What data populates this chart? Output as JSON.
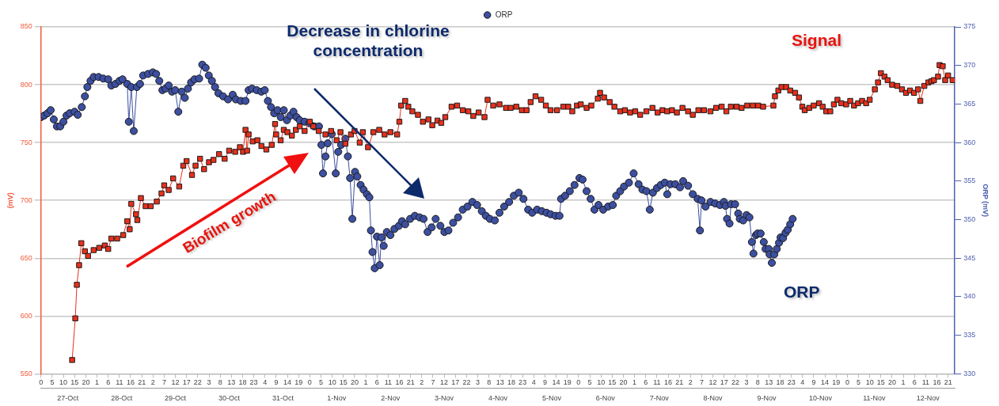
{
  "chart_data": {
    "type": "line",
    "ylabel": "(mV)",
    "y2label": "ORP (mV)",
    "legend": "top",
    "grid": "y",
    "annotations": [
      "Decrease in chlorine concentration",
      "Biofilm growth",
      "Signal",
      "ORP"
    ],
    "xlim": [
      "--10-27T00:00",
      "--11-13T00:00"
    ],
    "ylim": [
      550,
      850
    ],
    "y2lim": [
      330,
      375
    ],
    "yticks": [
      550,
      600,
      650,
      700,
      750,
      800,
      850
    ],
    "y2ticks": [
      330,
      335,
      340,
      345,
      350,
      355,
      360,
      365,
      370,
      375
    ],
    "xticks": [
      {
        "value": "--10-27T00:00",
        "label": "0"
      },
      {
        "value": "--10-27T05:00",
        "label": "5"
      },
      {
        "value": "--10-27T10:00",
        "label": "10"
      },
      {
        "value": "--10-27T15:00",
        "label": "15"
      },
      {
        "value": "--10-27T20:00",
        "label": "20"
      },
      {
        "value": "--10-28T01:00",
        "label": "1"
      },
      {
        "value": "--10-28T06:00",
        "label": "6"
      },
      {
        "value": "--10-28T11:00",
        "label": "11"
      },
      {
        "value": "--10-28T16:00",
        "label": "16"
      },
      {
        "value": "--10-28T21:00",
        "label": "21"
      },
      {
        "value": "--10-29T02:00",
        "label": "2"
      },
      {
        "value": "--10-29T07:00",
        "label": "7"
      },
      {
        "value": "--10-29T12:00",
        "label": "12"
      },
      {
        "value": "--10-29T17:00",
        "label": "17"
      },
      {
        "value": "--10-29T22:00",
        "label": "22"
      },
      {
        "value": "--10-30T03:00",
        "label": "3"
      },
      {
        "value": "--10-30T08:00",
        "label": "8"
      },
      {
        "value": "--10-30T13:00",
        "label": "13"
      },
      {
        "value": "--10-30T18:00",
        "label": "18"
      },
      {
        "value": "--10-30T23:00",
        "label": "23"
      },
      {
        "value": "--10-31T04:00",
        "label": "4"
      },
      {
        "value": "--10-31T09:00",
        "label": "9"
      },
      {
        "value": "--10-31T14:00",
        "label": "14"
      },
      {
        "value": "--10-31T19:00",
        "label": "19"
      },
      {
        "value": "--11-01T00:00",
        "label": "0"
      },
      {
        "value": "--11-01T05:00",
        "label": "5"
      },
      {
        "value": "--11-01T10:00",
        "label": "10"
      },
      {
        "value": "--11-01T15:00",
        "label": "15"
      },
      {
        "value": "--11-01T20:00",
        "label": "20"
      },
      {
        "value": "--11-02T01:00",
        "label": "1"
      },
      {
        "value": "--11-02T06:00",
        "label": "6"
      },
      {
        "value": "--11-02T11:00",
        "label": "11"
      },
      {
        "value": "--11-02T16:00",
        "label": "16"
      },
      {
        "value": "--11-02T21:00",
        "label": "21"
      },
      {
        "value": "--11-03T02:00",
        "label": "2"
      },
      {
        "value": "--11-03T07:00",
        "label": "7"
      },
      {
        "value": "--11-03T12:00",
        "label": "12"
      },
      {
        "value": "--11-03T17:00",
        "label": "17"
      },
      {
        "value": "--11-03T22:00",
        "label": "22"
      },
      {
        "value": "--11-04T03:00",
        "label": "3"
      },
      {
        "value": "--11-04T08:00",
        "label": "8"
      },
      {
        "value": "--11-04T13:00",
        "label": "13"
      },
      {
        "value": "--11-04T18:00",
        "label": "18"
      },
      {
        "value": "--11-04T23:00",
        "label": "23"
      },
      {
        "value": "--11-05T04:00",
        "label": "4"
      },
      {
        "value": "--11-05T09:00",
        "label": "9"
      },
      {
        "value": "--11-05T14:00",
        "label": "14"
      },
      {
        "value": "--11-05T19:00",
        "label": "19"
      },
      {
        "value": "--11-06T00:00",
        "label": "0"
      },
      {
        "value": "--11-06T05:00",
        "label": "5"
      },
      {
        "value": "--11-06T10:00",
        "label": "10"
      },
      {
        "value": "--11-06T15:00",
        "label": "15"
      },
      {
        "value": "--11-06T20:00",
        "label": "20"
      },
      {
        "value": "--11-07T01:00",
        "label": "1"
      },
      {
        "value": "--11-07T06:00",
        "label": "6"
      },
      {
        "value": "--11-07T11:00",
        "label": "11"
      },
      {
        "value": "--11-07T16:00",
        "label": "16"
      },
      {
        "value": "--11-07T21:00",
        "label": "21"
      },
      {
        "value": "--11-08T02:00",
        "label": "2"
      },
      {
        "value": "--11-08T07:00",
        "label": "7"
      },
      {
        "value": "--11-08T12:00",
        "label": "12"
      },
      {
        "value": "--11-08T17:00",
        "label": "17"
      },
      {
        "value": "--11-08T22:00",
        "label": "22"
      },
      {
        "value": "--11-09T03:00",
        "label": "3"
      },
      {
        "value": "--11-09T08:00",
        "label": "8"
      },
      {
        "value": "--11-09T13:00",
        "label": "13"
      },
      {
        "value": "--11-09T18:00",
        "label": "18"
      },
      {
        "value": "--11-09T23:00",
        "label": "23"
      },
      {
        "value": "--11-10T04:00",
        "label": "4"
      },
      {
        "value": "--11-10T09:00",
        "label": "9"
      },
      {
        "value": "--11-10T14:00",
        "label": "14"
      },
      {
        "value": "--11-10T19:00",
        "label": "19"
      },
      {
        "value": "--11-11T00:00",
        "label": "0"
      },
      {
        "value": "--11-11T05:00",
        "label": "5"
      },
      {
        "value": "--11-11T10:00",
        "label": "10"
      },
      {
        "value": "--11-11T15:00",
        "label": "15"
      },
      {
        "value": "--11-11T20:00",
        "label": "20"
      },
      {
        "value": "--11-12T01:00",
        "label": "1"
      },
      {
        "value": "--11-12T06:00",
        "label": "6"
      },
      {
        "value": "--11-12T11:00",
        "label": "11"
      },
      {
        "value": "--11-12T16:00",
        "label": "16"
      },
      {
        "value": "--11-12T21:00",
        "label": "21"
      }
    ],
    "x2lim": [
      "--10-27T00:00",
      "--11-13T00:00"
    ],
    "x2ticks": [
      {
        "value": "--10-27T12:00",
        "label": "27-Oct"
      },
      {
        "value": "--10-28T12:00",
        "label": "28-Oct"
      },
      {
        "value": "--10-29T12:00",
        "label": "29-Oct"
      },
      {
        "value": "--10-30T12:00",
        "label": "30-Oct"
      },
      {
        "value": "--10-31T12:00",
        "label": "31-Oct"
      },
      {
        "value": "--11-01T12:00",
        "label": "1-Nov"
      },
      {
        "value": "--11-02T12:00",
        "label": "2-Nov"
      },
      {
        "value": "--11-03T12:00",
        "label": "3-Nov"
      },
      {
        "value": "--11-04T12:00",
        "label": "4-Nov"
      },
      {
        "value": "--11-05T12:00",
        "label": "5-Nov"
      },
      {
        "value": "--11-06T12:00",
        "label": "6-Nov"
      },
      {
        "value": "--11-07T12:00",
        "label": "7-Nov"
      },
      {
        "value": "--11-08T12:00",
        "label": "8-Nov"
      },
      {
        "value": "--11-09T12:00",
        "label": "9-Nov"
      },
      {
        "value": "--11-10T12:00",
        "label": "10-Nov"
      },
      {
        "value": "--11-11T12:00",
        "label": "11-Nov"
      },
      {
        "value": "--11-12T12:00",
        "label": "12-Nov"
      }
    ],
    "series": [
      {
        "color": "#e8301c",
        "marker": "square",
        "x": [
          "--10-27T13:54",
          "--10-27T15:18",
          "--10-27T16:00",
          "--10-27T17:00",
          "--10-27T18:00",
          "--10-27T19:36",
          "--10-27T21:00",
          "--10-27T23:30",
          "--10-28T02:00",
          "--10-28T04:30",
          "--10-28T06:00",
          "--10-28T07:24",
          "--10-28T10:00",
          "--10-28T12:42",
          "--10-28T14:30",
          "--10-28T15:36",
          "--10-28T16:18",
          "--10-28T18:24",
          "--10-28T19:00",
          "--10-28T20:36",
          "--10-28T22:42",
          "--10-29T01:00",
          "--10-29T03:42",
          "--10-29T05:48",
          "--10-29T07:00",
          "--10-29T09:00",
          "--10-29T11:00",
          "--10-29T13:42",
          "--10-29T15:30",
          "--10-29T17:00",
          "--10-29T19:24",
          "--10-29T21:00",
          "--10-29T23:00",
          "--10-30T00:48",
          "--10-30T03:00",
          "--10-30T05:00",
          "--10-30T07:30",
          "--10-30T10:00",
          "--10-30T12:00",
          "--10-30T14:42",
          "--10-30T16:48",
          "--10-30T18:12",
          "--10-30T19:18",
          "--10-30T20:00",
          "--10-30T20:42",
          "--10-30T22:30",
          "--10-31T00:36",
          "--10-31T02:24",
          "--10-31T04:36",
          "--10-31T07:00",
          "--10-31T08:30",
          "--10-31T09:00",
          "--10-31T11:00",
          "--10-31T12:24",
          "--10-31T14:00",
          "--10-31T16:00",
          "--10-31T17:48",
          "--10-31T19:30",
          "--10-31T21:42",
          "--11-01T00:00",
          "--11-01T01:36",
          "--11-01T04:00",
          "--11-01T07:00",
          "--11-01T09:30",
          "--11-01T12:00",
          "--11-01T13:42",
          "--11-01T15:54",
          "--11-01T18:24",
          "--11-01T20:00",
          "--11-01T22:18",
          "--11-01T23:42",
          "--11-02T02:00",
          "--11-02T04:24",
          "--11-02T07:00",
          "--11-02T09:24",
          "--11-02T12:00",
          "--11-02T15:00",
          "--11-02T16:00",
          "--11-02T16:48",
          "--11-02T18:36",
          "--11-02T20:00",
          "--11-02T21:48",
          "--11-03T00:18",
          "--11-03T02:30",
          "--11-03T05:00",
          "--11-03T06:42",
          "--11-03T09:00",
          "--11-03T10:42",
          "--11-03T12:30",
          "--11-03T15:18",
          "--11-03T17:48",
          "--11-03T20:18",
          "--11-03T22:48",
          "--11-04T01:00",
          "--11-04T03:24",
          "--11-04T06:00",
          "--11-04T07:24",
          "--11-04T09:54",
          "--11-04T12:42",
          "--11-04T15:36",
          "--11-04T17:42",
          "--11-04T20:12",
          "--11-04T22:42",
          "--11-05T00:48",
          "--11-05T02:36",
          "--11-05T04:48",
          "--11-05T07:18",
          "--11-05T09:24",
          "--11-05T11:30",
          "--11-05T14:24",
          "--11-05T17:12",
          "--11-05T19:24",
          "--11-05T21:12",
          "--11-05T23:18",
          "--11-06T01:00",
          "--11-06T03:36",
          "--11-06T05:42",
          "--11-06T08:36",
          "--11-06T09:36",
          "--11-06T11:24",
          "--11-06T13:54",
          "--11-06T16:00",
          "--11-06T18:36",
          "--11-06T20:42",
          "--11-06T23:00",
          "--11-07T01:18",
          "--11-07T03:30",
          "--11-07T06:18",
          "--11-07T09:00",
          "--11-07T11:18",
          "--11-07T13:30",
          "--11-07T15:36",
          "--11-07T17:42",
          "--11-07T19:54",
          "--11-07T22:24",
          "--11-08T00:54",
          "--11-08T03:00",
          "--11-08T05:30",
          "--11-08T08:00",
          "--11-08T10:54",
          "--11-08T13:24",
          "--11-08T15:54",
          "--11-08T18:00",
          "--11-08T20:00",
          "--11-08T22:36",
          "--11-09T00:48",
          "--11-09T03:18",
          "--11-09T05:48",
          "--11-09T08:12",
          "--11-09T10:24",
          "--11-09T15:00",
          "--11-09T15:42",
          "--11-09T17:12",
          "--11-09T18:36",
          "--11-09T20:42",
          "--11-09T22:30",
          "--11-10T00:42",
          "--11-10T02:24",
          "--11-10T03:54",
          "--11-10T05:00",
          "--11-10T07:00",
          "--11-10T09:00",
          "--11-10T11:24",
          "--11-10T13:00",
          "--11-10T14:36",
          "--11-10T16:24",
          "--11-10T18:00",
          "--11-10T19:36",
          "--11-10T21:18",
          "--11-10T23:30",
          "--11-11T01:18",
          "--11-11T03:00",
          "--11-11T04:48",
          "--11-11T06:36",
          "--11-11T08:24",
          "--11-11T10:00",
          "--11-11T12:18",
          "--11-11T13:42",
          "--11-11T15:00",
          "--11-11T16:36",
          "--11-11T18:00",
          "--11-11T20:00",
          "--11-11T22:18",
          "--11-12T00:24",
          "--11-12T02:12",
          "--11-12T04:00",
          "--11-12T05:48",
          "--11-12T07:36",
          "--11-12T08:36",
          "--11-12T10:24",
          "--11-12T12:12",
          "--11-12T13:36",
          "--11-12T14:42",
          "--11-12T16:30",
          "--11-12T17:12",
          "--11-12T18:36",
          "--11-12T19:42",
          "--11-12T21:00",
          "--11-12T23:00"
        ],
        "values": [
          562,
          598,
          627,
          644,
          663,
          656,
          652,
          657,
          659,
          661,
          658,
          667,
          667,
          670,
          682,
          675,
          697,
          688,
          683,
          702,
          695,
          695,
          699,
          706,
          713,
          709,
          719,
          712,
          730,
          734,
          722,
          730,
          736,
          727,
          733,
          735,
          740,
          736,
          743,
          742,
          746,
          742,
          761,
          743,
          757,
          751,
          752,
          747,
          744,
          748,
          766,
          757,
          752,
          761,
          759,
          756,
          761,
          764,
          760,
          768,
          764,
          760,
          757,
          760,
          752,
          759,
          749,
          757,
          760,
          750,
          759,
          746,
          759,
          761,
          757,
          759,
          757,
          768,
          782,
          786,
          781,
          777,
          774,
          768,
          770,
          765,
          769,
          767,
          772,
          781,
          782,
          778,
          777,
          773,
          776,
          772,
          787,
          782,
          783,
          780,
          780,
          781,
          778,
          778,
          785,
          790,
          787,
          782,
          778,
          778,
          781,
          781,
          777,
          782,
          783,
          780,
          782,
          788,
          793,
          789,
          785,
          781,
          777,
          778,
          776,
          777,
          774,
          777,
          780,
          776,
          778,
          777,
          778,
          776,
          780,
          777,
          774,
          778,
          778,
          777,
          780,
          781,
          777,
          781,
          781,
          780,
          782,
          782,
          782,
          781,
          782,
          790,
          795,
          798,
          798,
          795,
          793,
          789,
          781,
          778,
          780,
          782,
          784,
          781,
          777,
          777,
          783,
          787,
          784,
          783,
          786,
          782,
          784,
          786,
          784,
          787,
          796,
          802,
          810,
          807,
          804,
          800,
          799,
          796,
          793,
          795,
          793,
          796,
          786,
          799,
          802,
          803,
          804,
          807,
          817,
          816,
          804,
          808,
          804
        ]
      },
      {
        "name": "ORP",
        "color": "#3c4fa0",
        "marker": "circle",
        "axis": "y2",
        "x": [
          "--10-27T00:00",
          "--10-27T01:24",
          "--10-27T02:54",
          "--10-27T04:18",
          "--10-27T05:42",
          "--10-27T07:06",
          "--10-27T08:36",
          "--10-27T10:00",
          "--10-27T11:24",
          "--10-27T12:48",
          "--10-27T15:00",
          "--10-27T16:24",
          "--10-27T18:12",
          "--10-27T19:36",
          "--10-27T20:42",
          "--10-27T22:06",
          "--10-27T23:30",
          "--10-28T01:42",
          "--10-28T03:48",
          "--10-28T06:00",
          "--10-28T07:24",
          "--10-28T09:12",
          "--10-28T11:00",
          "--10-28T12:24",
          "--10-28T14:30",
          "--10-28T15:12",
          "--10-28T16:18",
          "--10-28T17:24",
          "--10-28T18:48",
          "--10-28T20:12",
          "--10-28T21:36",
          "--10-28T23:48",
          "--10-29T01:54",
          "--10-29T03:24",
          "--10-29T04:48",
          "--10-29T06:12",
          "--10-29T07:36",
          "--10-29T09:00",
          "--10-29T10:30",
          "--10-29T11:54",
          "--10-29T13:18",
          "--10-29T14:48",
          "--10-29T16:12",
          "--10-29T17:36",
          "--10-29T19:00",
          "--10-29T20:30",
          "--10-29T22:36",
          "--10-30T00:00",
          "--10-30T01:30",
          "--10-30T02:54",
          "--10-30T04:18",
          "--10-30T05:42",
          "--10-30T07:12",
          "--10-30T09:18",
          "--10-30T11:30",
          "--10-30T13:36",
          "--10-30T15:00",
          "--10-30T17:12",
          "--10-30T19:18",
          "--10-30T20:42",
          "--10-30T22:12",
          "--10-31T00:18",
          "--10-31T02:24",
          "--10-31T03:54",
          "--10-31T05:18",
          "--10-31T06:42",
          "--10-31T08:06",
          "--10-31T09:36",
          "--10-31T11:00",
          "--10-31T12:24",
          "--10-31T13:48",
          "--10-31T15:18",
          "--10-31T16:42",
          "--10-31T18:06",
          "--10-31T19:30",
          "--10-31T21:42",
          "--10-31T23:48",
          "--11-01T02:00",
          "--11-01T04:06",
          "--11-01T05:12",
          "--11-01T05:54",
          "--11-01T07:00",
          "--11-01T08:00",
          "--11-01T09:48",
          "--11-01T11:36",
          "--11-01T12:42",
          "--11-01T14:00",
          "--11-01T15:54",
          "--11-01T17:00",
          "--11-01T18:00",
          "--11-01T19:00",
          "--11-01T20:12",
          "--11-01T21:12",
          "--11-01T22:42",
          "--11-02T00:00",
          "--11-02T01:30",
          "--11-02T02:36",
          "--11-02T03:18",
          "--11-02T04:00",
          "--11-02T05:00",
          "--11-02T06:00",
          "--11-02T07:12",
          "--11-02T08:00",
          "--11-02T09:00",
          "--11-02T10:24",
          "--11-02T12:00",
          "--11-02T13:48",
          "--11-02T15:48",
          "--11-02T17:12",
          "--11-02T18:36",
          "--11-02T20:48",
          "--11-02T22:54",
          "--11-03T01:00",
          "--11-03T02:48",
          "--11-03T04:36",
          "--11-03T06:24",
          "--11-03T08:12",
          "--11-03T10:18",
          "--11-03T12:06",
          "--11-03T13:54",
          "--11-03T16:00",
          "--11-03T18:12",
          "--11-03T20:18",
          "--11-03T22:24",
          "--11-04T00:36",
          "--11-04T02:42",
          "--11-04T04:48",
          "--11-04T06:36",
          "--11-04T08:24",
          "--11-04T10:36",
          "--11-04T12:42",
          "--11-04T14:48",
          "--11-04T17:00",
          "--11-04T19:06",
          "--11-04T21:18",
          "--11-04T23:24",
          "--11-05T01:30",
          "--11-05T03:18",
          "--11-05T05:30",
          "--11-05T07:36",
          "--11-05T09:42",
          "--11-05T11:30",
          "--11-05T13:42",
          "--11-05T15:30",
          "--11-05T16:12",
          "--11-05T18:00",
          "--11-05T20:06",
          "--11-05T22:12",
          "--11-06T00:24",
          "--11-06T01:48",
          "--11-06T03:36",
          "--11-06T05:24",
          "--11-06T07:06",
          "--11-06T08:54",
          "--11-06T11:00",
          "--11-06T13:12",
          "--11-06T15:18",
          "--11-06T16:48",
          "--11-06T18:36",
          "--11-06T20:18",
          "--11-06T22:30",
          "--11-07T00:36",
          "--11-07T02:48",
          "--11-07T04:30",
          "--11-07T06:18",
          "--11-07T07:48",
          "--11-07T09:12",
          "--11-07T11:00",
          "--11-07T12:42",
          "--11-07T14:30",
          "--11-07T15:36",
          "--11-07T17:00",
          "--11-07T19:12",
          "--11-07T21:18",
          "--11-07T22:42",
          "--11-08T00:54",
          "--11-08T03:00",
          "--11-08T05:12",
          "--11-08T06:12",
          "--11-08T06:54",
          "--11-08T08:42",
          "--11-08T10:54",
          "--11-08T13:00",
          "--11-08T15:06",
          "--11-08T16:54",
          "--11-08T17:36",
          "--11-08T18:18",
          "--11-08T19:24",
          "--11-08T20:06",
          "--11-08T21:54",
          "--11-08T23:18",
          "--11-09T00:00",
          "--11-09T01:30",
          "--11-09T03:00",
          "--11-09T04:18",
          "--11-09T05:24",
          "--11-09T06:06",
          "--11-09T07:12",
          "--11-09T07:54",
          "--11-09T09:18",
          "--11-09T10:42",
          "--11-09T11:30",
          "--11-09T12:54",
          "--11-09T13:18",
          "--11-09T14:18",
          "--11-09T15:24",
          "--11-09T16:30",
          "--11-09T17:30",
          "--11-09T18:12",
          "--11-09T19:18",
          "--11-09T20:24",
          "--11-09T21:24",
          "--11-09T22:30",
          "--11-09T23:36"
        ],
        "values": [
          363.3,
          363.5,
          363.8,
          364.2,
          363,
          362.1,
          362.1,
          362.7,
          363.5,
          363.8,
          364,
          363.6,
          364.6,
          366,
          367.2,
          368,
          368.5,
          368.5,
          368.3,
          368.2,
          367.4,
          367.6,
          368,
          368.2,
          367.6,
          362.7,
          367.2,
          361.5,
          367.2,
          367.6,
          368.7,
          368.9,
          369.1,
          368.9,
          368,
          366.8,
          367,
          367.4,
          366.6,
          366.8,
          364,
          366.6,
          365.8,
          367,
          367.8,
          368.2,
          368.3,
          370.1,
          369.7,
          368.7,
          368,
          367.2,
          366.4,
          366,
          365.6,
          366.2,
          365.6,
          365.4,
          365.4,
          366.8,
          367,
          366.8,
          366.6,
          366.8,
          365.4,
          364.6,
          363.8,
          364.2,
          363.3,
          364.2,
          362.9,
          363.5,
          364,
          363.3,
          362.9,
          362.7,
          362.5,
          362.1,
          362.1,
          359.7,
          356,
          358.2,
          359.9,
          361.1,
          356,
          358.8,
          359.7,
          360.5,
          358.2,
          355.4,
          350.1,
          356.2,
          355.6,
          354.5,
          353.9,
          353.3,
          352.9,
          348.6,
          345.8,
          343.7,
          347.8,
          344.1,
          347.7,
          346.6,
          348.4,
          348,
          348.8,
          349.2,
          349.8,
          349.4,
          350.1,
          350.5,
          350.3,
          350.1,
          348.4,
          349,
          350.1,
          349.2,
          348.4,
          348.6,
          349.6,
          350.3,
          351.3,
          351.7,
          352.3,
          351.9,
          351.1,
          350.5,
          350.1,
          349.9,
          350.9,
          351.7,
          352.3,
          353.1,
          353.5,
          352.7,
          351.3,
          350.9,
          351.3,
          351.1,
          350.9,
          350.7,
          350.5,
          350.5,
          352.7,
          353.1,
          353.7,
          354.5,
          355.4,
          355.2,
          353.7,
          352.7,
          351.3,
          351.9,
          351.3,
          351.7,
          351.9,
          353.1,
          353.7,
          354.3,
          354.8,
          356,
          354.6,
          353.9,
          353.7,
          351.3,
          353.5,
          354.1,
          354.5,
          354.8,
          353.3,
          354.6,
          354.6,
          354.2,
          355,
          354.4,
          353.3,
          352.7,
          348.6,
          352.5,
          351.7,
          352.3,
          352.1,
          351.9,
          352.3,
          351.8,
          350.1,
          349.5,
          352,
          352,
          350.8,
          350.1,
          349.9,
          350.6,
          350.3,
          347.1,
          345.6,
          348,
          348.2,
          348.2,
          347.1,
          346.2,
          346.2,
          345.5,
          344.4,
          345.5,
          346.2,
          347,
          347.7,
          347.6,
          348.3,
          348.7,
          349.4,
          350.1
        ]
      }
    ]
  }
}
